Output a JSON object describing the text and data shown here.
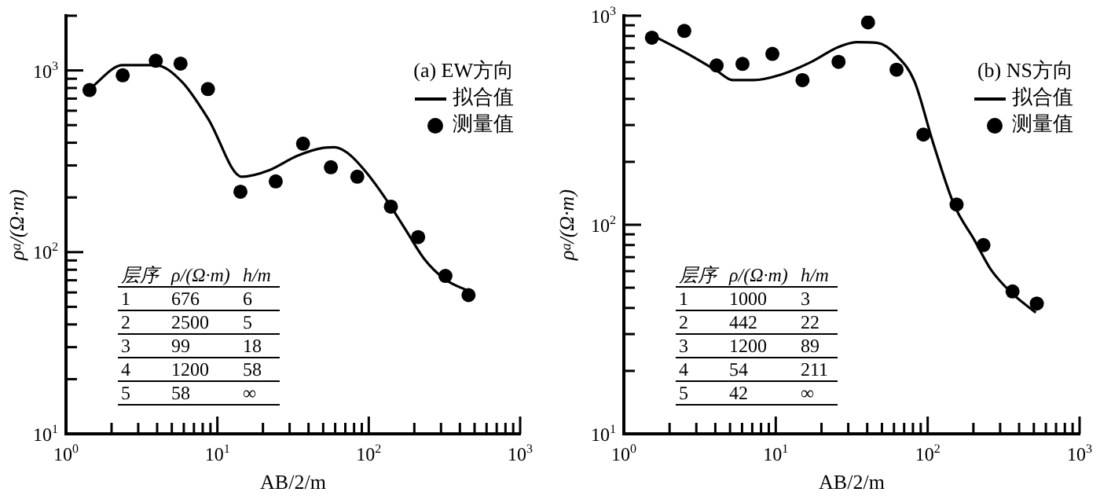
{
  "chart_data": [
    {
      "type": "scatter",
      "title": "(a) EW方向",
      "xlabel": "AB/2/m",
      "ylabel": "ρ$_{a}$/(Ω·m)",
      "log": "xy",
      "legend": "top right",
      "xlim": [
        1,
        1000
      ],
      "ylim": [
        10,
        2000
      ],
      "xticks": [
        {
          "value": 1,
          "label": "10$^{0}$"
        },
        {
          "value": 2,
          "label": null
        },
        {
          "value": 3,
          "label": null
        },
        {
          "value": 4,
          "label": null
        },
        {
          "value": 5,
          "label": null
        },
        {
          "value": 6,
          "label": null
        },
        {
          "value": 7,
          "label": null
        },
        {
          "value": 8,
          "label": null
        },
        {
          "value": 9,
          "label": null
        },
        {
          "value": 10,
          "label": "10$^{1}$"
        },
        {
          "value": 20,
          "label": null
        },
        {
          "value": 30,
          "label": null
        },
        {
          "value": 40,
          "label": null
        },
        {
          "value": 50,
          "label": null
        },
        {
          "value": 60,
          "label": null
        },
        {
          "value": 70,
          "label": null
        },
        {
          "value": 80,
          "label": null
        },
        {
          "value": 90,
          "label": null
        },
        {
          "value": 100,
          "label": "10$^{2}$"
        },
        {
          "value": 200,
          "label": null
        },
        {
          "value": 300,
          "label": null
        },
        {
          "value": 400,
          "label": null
        },
        {
          "value": 500,
          "label": null
        },
        {
          "value": 600,
          "label": null
        },
        {
          "value": 700,
          "label": null
        },
        {
          "value": 800,
          "label": null
        },
        {
          "value": 900,
          "label": null
        },
        {
          "value": 1000,
          "label": "10$^{3}$"
        }
      ],
      "yticks": [
        {
          "value": 10,
          "label": "10$^{1}$"
        },
        {
          "value": 20,
          "label": null
        },
        {
          "value": 30,
          "label": null
        },
        {
          "value": 40,
          "label": null
        },
        {
          "value": 50,
          "label": null
        },
        {
          "value": 60,
          "label": null
        },
        {
          "value": 70,
          "label": null
        },
        {
          "value": 80,
          "label": null
        },
        {
          "value": 90,
          "label": null
        },
        {
          "value": 100,
          "label": "10$^{2}$"
        },
        {
          "value": 200,
          "label": null
        },
        {
          "value": 300,
          "label": null
        },
        {
          "value": 400,
          "label": null
        },
        {
          "value": 500,
          "label": null
        },
        {
          "value": 600,
          "label": null
        },
        {
          "value": 700,
          "label": null
        },
        {
          "value": 800,
          "label": null
        },
        {
          "value": 900,
          "label": null
        },
        {
          "value": 1000,
          "label": "10$^{3}$"
        },
        {
          "value": 2000,
          "label": null
        }
      ],
      "series": [
        {
          "name": "拟合值",
          "type": "line",
          "marker": "none",
          "color": "#000000",
          "x": [
            1.43,
            2.37,
            3.9,
            5.85,
            8.7,
            14.5,
            21.9,
            33.7,
            50,
            59.4,
            72.6,
            95.6,
            132,
            175,
            232,
            318,
            456
          ],
          "values": [
            790,
            1070,
            1070,
            863,
            541,
            260,
            282,
            339,
            375,
            378,
            351,
            277,
            192,
            133,
            92,
            71,
            61
          ]
        },
        {
          "name": "测量值",
          "marker": "circle",
          "color": "#000000",
          "x": [
            1.43,
            2.37,
            3.92,
            5.71,
            8.66,
            14.2,
            24.3,
            36.8,
            56.2,
            84,
            140,
            212,
            321,
            456
          ],
          "values": [
            780,
            940,
            1130,
            1090,
            790,
            215,
            245,
            395,
            293,
            260,
            178,
            121,
            74,
            58
          ]
        }
      ],
      "annotations": [
        "层序",
        "ρ/(Ω·m)",
        "h/m",
        "1",
        "676",
        "6",
        "2",
        "2500",
        "5",
        "3",
        "99",
        "18",
        "4",
        "1200",
        "58",
        "5",
        "58",
        "∞"
      ]
    },
    {
      "type": "scatter",
      "title": "(b) NS方向",
      "xlabel": "AB/2/m",
      "ylabel": "ρ$_{a}$/(Ω·m)",
      "log": "xy",
      "legend": "top right",
      "xlim": [
        1,
        1000
      ],
      "ylim": [
        10,
        1000
      ],
      "xticks": [
        {
          "value": 1,
          "label": "10$^{0}$"
        },
        {
          "value": 2,
          "label": null
        },
        {
          "value": 3,
          "label": null
        },
        {
          "value": 4,
          "label": null
        },
        {
          "value": 5,
          "label": null
        },
        {
          "value": 6,
          "label": null
        },
        {
          "value": 7,
          "label": null
        },
        {
          "value": 8,
          "label": null
        },
        {
          "value": 9,
          "label": null
        },
        {
          "value": 10,
          "label": "10$^{1}$"
        },
        {
          "value": 20,
          "label": null
        },
        {
          "value": 30,
          "label": null
        },
        {
          "value": 40,
          "label": null
        },
        {
          "value": 50,
          "label": null
        },
        {
          "value": 60,
          "label": null
        },
        {
          "value": 70,
          "label": null
        },
        {
          "value": 80,
          "label": null
        },
        {
          "value": 90,
          "label": null
        },
        {
          "value": 100,
          "label": "10$^{2}$"
        },
        {
          "value": 200,
          "label": null
        },
        {
          "value": 300,
          "label": null
        },
        {
          "value": 400,
          "label": null
        },
        {
          "value": 500,
          "label": null
        },
        {
          "value": 600,
          "label": null
        },
        {
          "value": 700,
          "label": null
        },
        {
          "value": 800,
          "label": null
        },
        {
          "value": 900,
          "label": null
        },
        {
          "value": 1000,
          "label": "10$^{3}$"
        }
      ],
      "yticks": [
        {
          "value": 10,
          "label": "10$^{1}$"
        },
        {
          "value": 20,
          "label": null
        },
        {
          "value": 30,
          "label": null
        },
        {
          "value": 40,
          "label": null
        },
        {
          "value": 50,
          "label": null
        },
        {
          "value": 60,
          "label": null
        },
        {
          "value": 70,
          "label": null
        },
        {
          "value": 80,
          "label": null
        },
        {
          "value": 90,
          "label": null
        },
        {
          "value": 100,
          "label": "10$^{2}$"
        },
        {
          "value": 200,
          "label": null
        },
        {
          "value": 300,
          "label": null
        },
        {
          "value": 400,
          "label": null
        },
        {
          "value": 500,
          "label": null
        },
        {
          "value": 600,
          "label": null
        },
        {
          "value": 700,
          "label": null
        },
        {
          "value": 800,
          "label": null
        },
        {
          "value": 900,
          "label": null
        },
        {
          "value": 1000,
          "label": "10$^{3}$"
        }
      ],
      "series": [
        {
          "name": "拟合值",
          "type": "line",
          "marker": "none",
          "color": "#000000",
          "x": [
            1.53,
            2.53,
            4.08,
            5.19,
            7.15,
            10.7,
            17.2,
            25.7,
            34,
            46.8,
            62,
            81.9,
            108,
            149,
            204,
            261,
            359,
            515
          ],
          "values": [
            808,
            668,
            546,
            492,
            492,
            521,
            602,
            707,
            748,
            741,
            649,
            485,
            250,
            125,
            84,
            61,
            47,
            38
          ]
        },
        {
          "name": "测量值",
          "marker": "circle",
          "color": "#000000",
          "x": [
            1.53,
            2.5,
            4.08,
            6.04,
            9.5,
            15,
            25.9,
            40.5,
            62.4,
            93.7,
            155,
            233,
            362,
            523
          ],
          "values": [
            785,
            846,
            578,
            588,
            657,
            492,
            602,
            929,
            552,
            270,
            125,
            80,
            48,
            42
          ]
        }
      ],
      "annotations": [
        "层序",
        "ρ/(Ω·m)",
        "h/m",
        "1",
        "1000",
        "3",
        "2",
        "442",
        "22",
        "3",
        "1200",
        "89",
        "4",
        "54",
        "211",
        "5",
        "42",
        "∞"
      ]
    }
  ]
}
